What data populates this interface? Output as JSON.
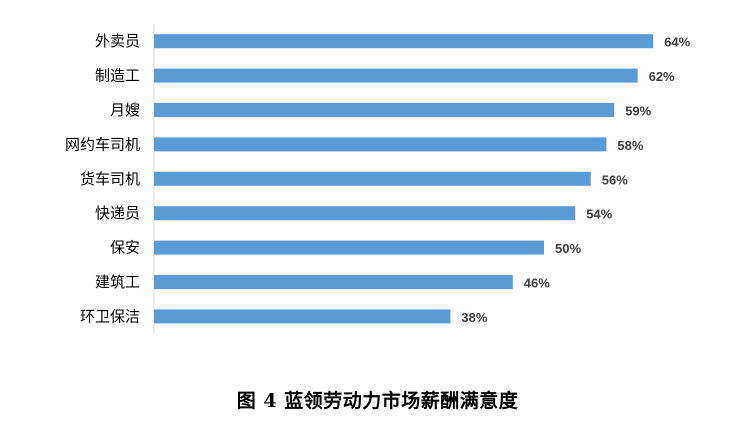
{
  "chart_data": {
    "type": "bar",
    "orientation": "horizontal",
    "categories": [
      "外卖员",
      "制造工",
      "月嫂",
      "网约车司机",
      "货车司机",
      "快递员",
      "保安",
      "建筑工",
      "环卫保洁"
    ],
    "values": [
      64,
      62,
      59,
      58,
      56,
      54,
      50,
      46,
      38
    ],
    "value_labels": [
      "64%",
      "62%",
      "59%",
      "58%",
      "56%",
      "54%",
      "50%",
      "46%",
      "38%"
    ],
    "unit": "%",
    "xlim": [
      0,
      70
    ],
    "grid": false,
    "legend": "none",
    "bar_color": "#5B9BD5",
    "title": "",
    "xlabel": "",
    "ylabel": ""
  },
  "caption": "图 4  蓝领劳动力市场薪酬满意度"
}
